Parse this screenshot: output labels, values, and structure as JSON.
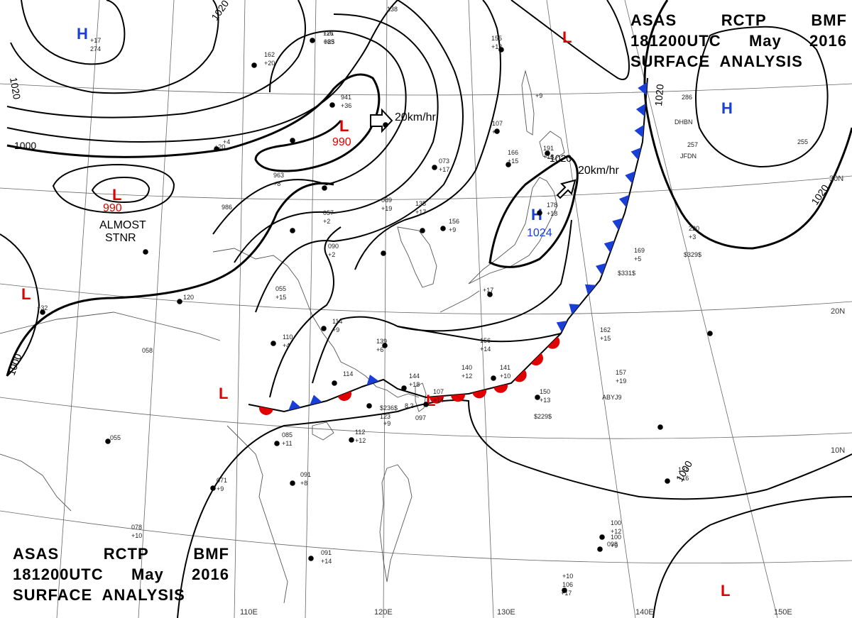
{
  "title": {
    "header_words": [
      "ASAS",
      "RCTP",
      "BMF"
    ],
    "time_words": [
      "181200UTC",
      "May",
      "2016"
    ],
    "product": "SURFACE  ANALYSIS"
  },
  "isobar_labels": [
    "1020",
    "1020",
    "1000",
    "1020",
    "1020",
    "1020",
    "1000",
    "1000"
  ],
  "pressure_centers": [
    {
      "type": "H",
      "value": "",
      "color": "#1a3fd6"
    },
    {
      "type": "L",
      "value": "990",
      "color": "#e00000"
    },
    {
      "type": "L",
      "value": "990",
      "color": "#e00000"
    },
    {
      "type": "H",
      "value": "1024",
      "color": "#1a3fd6"
    },
    {
      "type": "H",
      "value": "",
      "color": "#1a3fd6"
    },
    {
      "type": "L",
      "value": "",
      "color": "#e00000"
    },
    {
      "type": "L",
      "value": "",
      "color": "#e00000"
    },
    {
      "type": "L",
      "value": "",
      "color": "#e00000"
    },
    {
      "type": "L",
      "value": "",
      "color": "#e00000"
    },
    {
      "type": "L",
      "value": "",
      "color": "#e00000"
    }
  ],
  "motion_labels": [
    "20km/hr",
    "20km/hr"
  ],
  "almost_stationary": [
    "ALMOST",
    "STNR"
  ],
  "latitude_labels": [
    "30N",
    "20N",
    "10N"
  ],
  "longitude_labels": [
    "110E",
    "120E",
    "130E",
    "140E",
    "150E"
  ],
  "station_samples": [
    "116",
    "+25",
    "162",
    "+20",
    "941",
    "+36",
    "963",
    "+8",
    "986",
    "057",
    "+2",
    "089",
    "+19",
    "090",
    "+2",
    "135",
    "+17",
    "156",
    "+9",
    "055",
    "+15",
    "114",
    "+9",
    "110",
    "+4",
    "139",
    "+6",
    "058",
    "114",
    "144",
    "+18",
    "107",
    "+14",
    "140",
    "+12",
    "141",
    "+10",
    "156",
    "+14",
    "150",
    "+13",
    "$229$",
    "157",
    "+19",
    "ABYJ9",
    "162",
    "+15",
    "169",
    "+5",
    "$331$",
    "220",
    "+3",
    "$329$",
    "257",
    "JFDN",
    "255",
    "286",
    "DHBN",
    "178",
    "+18",
    "191",
    "+18",
    "166",
    "+15",
    "073",
    "+17",
    "107",
    "+7",
    "155",
    "+12",
    "138",
    "085",
    "+11",
    "112",
    "+12",
    "071",
    "+9",
    "091",
    "+8",
    "091",
    "+14",
    "078",
    "+10",
    "055",
    "121",
    "+16",
    "100",
    "+12",
    "100",
    "+9",
    "098",
    "+10",
    "106",
    "+17",
    "8 2",
    "097",
    "$236$",
    "123",
    "+9",
    "+17",
    "274",
    "+4",
    "+20",
    "+17",
    "120",
    "+9",
    "+32",
    "+21",
    "083"
  ],
  "colors": {
    "cold_front": "#1a3fd6",
    "warm_front": "#e00000",
    "isobar": "#000000",
    "coast": "#555555",
    "grid": "#666666"
  }
}
